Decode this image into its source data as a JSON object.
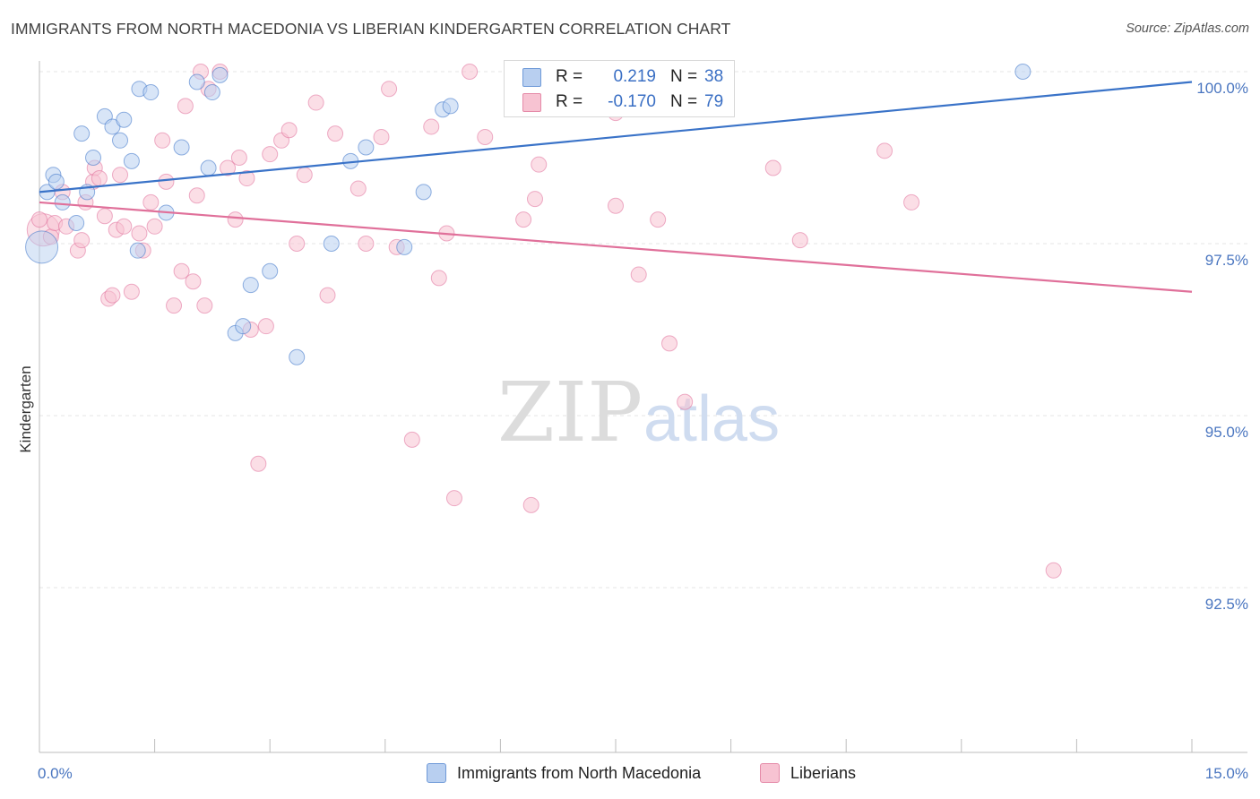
{
  "title": "IMMIGRANTS FROM NORTH MACEDONIA VS LIBERIAN KINDERGARTEN CORRELATION CHART",
  "source": "Source: ZipAtlas.com",
  "watermark": {
    "zip": "ZIP",
    "atlas": "atlas"
  },
  "legend": {
    "r_label": "R =",
    "n_label": "N =",
    "rows": [
      {
        "r": "0.219",
        "n": "38",
        "fill": "#b8cff0",
        "stroke": "#6f9ad8"
      },
      {
        "r": "-0.170",
        "n": "79",
        "fill": "#f7c3d2",
        "stroke": "#e58aa8"
      }
    ]
  },
  "bottom_legend": [
    {
      "label": "Immigrants from North Macedonia",
      "fill": "#b8cff0",
      "stroke": "#6f9ad8"
    },
    {
      "label": "Liberians",
      "fill": "#f7c3d2",
      "stroke": "#e58aa8"
    }
  ],
  "chart_data": {
    "type": "scatter",
    "title": "IMMIGRANTS FROM NORTH MACEDONIA VS LIBERIAN KINDERGARTEN CORRELATION CHART",
    "xlabel": "",
    "ylabel": "Kindergarten",
    "xlim": [
      0,
      15
    ],
    "ylim": [
      90.0,
      100.25
    ],
    "x_tick_labels": [
      {
        "value": 0,
        "label": "0.0%"
      },
      {
        "value": 15,
        "label": "15.0%"
      }
    ],
    "y_tick_labels": [
      {
        "value": 100.0,
        "label": "100.0%"
      },
      {
        "value": 97.5,
        "label": "97.5%"
      },
      {
        "value": 95.0,
        "label": "95.0%"
      },
      {
        "value": 92.5,
        "label": "92.5%"
      }
    ],
    "series": [
      {
        "name": "Immigrants from North Macedonia",
        "color": "#3a73c8",
        "fill": "#b8cff0",
        "r": 0.219,
        "n": 38,
        "trendline": [
          [
            0,
            98.25
          ],
          [
            15,
            99.85
          ]
        ],
        "points": [
          [
            0.03,
            97.45,
            "big"
          ],
          [
            0.1,
            98.25
          ],
          [
            0.18,
            98.5
          ],
          [
            0.22,
            98.4
          ],
          [
            0.3,
            98.1
          ],
          [
            0.48,
            97.8
          ],
          [
            0.55,
            99.1
          ],
          [
            0.62,
            98.25
          ],
          [
            0.7,
            98.75
          ],
          [
            0.85,
            99.35
          ],
          [
            0.95,
            99.2
          ],
          [
            1.05,
            99.0
          ],
          [
            1.1,
            99.3
          ],
          [
            1.2,
            98.7
          ],
          [
            1.28,
            97.4
          ],
          [
            1.3,
            99.75
          ],
          [
            1.45,
            99.7
          ],
          [
            1.65,
            97.95
          ],
          [
            1.85,
            98.9
          ],
          [
            2.05,
            99.85
          ],
          [
            2.2,
            98.6
          ],
          [
            2.25,
            99.7
          ],
          [
            2.35,
            99.95
          ],
          [
            2.55,
            96.2
          ],
          [
            2.65,
            96.3
          ],
          [
            2.75,
            96.9
          ],
          [
            3.0,
            97.1
          ],
          [
            3.35,
            95.85
          ],
          [
            3.8,
            97.5
          ],
          [
            4.05,
            98.7
          ],
          [
            4.25,
            98.9
          ],
          [
            4.75,
            97.45
          ],
          [
            5.0,
            98.25
          ],
          [
            5.25,
            99.45
          ],
          [
            5.35,
            99.5
          ],
          [
            6.25,
            99.9
          ],
          [
            8.5,
            100.0
          ],
          [
            12.8,
            100.0
          ]
        ]
      },
      {
        "name": "Liberians",
        "color": "#e0709a",
        "fill": "#f7c3d2",
        "r": -0.17,
        "n": 79,
        "trendline": [
          [
            0,
            98.1
          ],
          [
            15,
            96.8
          ]
        ],
        "points": [
          [
            0.05,
            97.7,
            "big"
          ],
          [
            0.15,
            97.6
          ],
          [
            0.2,
            97.8
          ],
          [
            0.3,
            98.25
          ],
          [
            0.35,
            97.75
          ],
          [
            0.5,
            97.4
          ],
          [
            0.55,
            97.55
          ],
          [
            0.6,
            98.1
          ],
          [
            0.7,
            98.4
          ],
          [
            0.72,
            98.6
          ],
          [
            0.78,
            98.45
          ],
          [
            0.85,
            97.9
          ],
          [
            0.9,
            96.7
          ],
          [
            0.95,
            96.75
          ],
          [
            1.0,
            97.7
          ],
          [
            1.05,
            98.5
          ],
          [
            1.1,
            97.75
          ],
          [
            1.2,
            96.8
          ],
          [
            1.3,
            97.65
          ],
          [
            1.35,
            97.4
          ],
          [
            1.45,
            98.1
          ],
          [
            1.5,
            97.75
          ],
          [
            1.6,
            99.0
          ],
          [
            1.65,
            98.4
          ],
          [
            1.75,
            96.6
          ],
          [
            1.85,
            97.1
          ],
          [
            1.9,
            99.5
          ],
          [
            2.0,
            96.95
          ],
          [
            2.05,
            98.2
          ],
          [
            2.1,
            100.0
          ],
          [
            2.15,
            96.6
          ],
          [
            2.2,
            99.75
          ],
          [
            2.35,
            100.0
          ],
          [
            2.45,
            98.6
          ],
          [
            2.55,
            97.85
          ],
          [
            2.6,
            98.75
          ],
          [
            2.7,
            98.45
          ],
          [
            2.75,
            96.25
          ],
          [
            2.85,
            94.3
          ],
          [
            2.95,
            96.3
          ],
          [
            3.0,
            98.8
          ],
          [
            3.15,
            99.0
          ],
          [
            3.25,
            99.15
          ],
          [
            3.35,
            97.5
          ],
          [
            3.45,
            98.5
          ],
          [
            3.6,
            99.55
          ],
          [
            3.75,
            96.75
          ],
          [
            3.85,
            99.1
          ],
          [
            4.15,
            98.3
          ],
          [
            4.25,
            97.5
          ],
          [
            4.45,
            99.05
          ],
          [
            4.55,
            99.75
          ],
          [
            4.65,
            97.45
          ],
          [
            4.85,
            94.65
          ],
          [
            5.1,
            99.2
          ],
          [
            5.2,
            97.0
          ],
          [
            5.3,
            97.65
          ],
          [
            5.4,
            93.8
          ],
          [
            5.6,
            100.0
          ],
          [
            5.8,
            99.05
          ],
          [
            6.15,
            99.5
          ],
          [
            6.3,
            97.85
          ],
          [
            6.4,
            93.7
          ],
          [
            6.45,
            98.15
          ],
          [
            6.5,
            98.65
          ],
          [
            7.0,
            100.0
          ],
          [
            7.5,
            99.4
          ],
          [
            7.5,
            98.05
          ],
          [
            7.8,
            97.05
          ],
          [
            8.05,
            97.85
          ],
          [
            8.2,
            96.05
          ],
          [
            8.4,
            95.2
          ],
          [
            8.9,
            100.0
          ],
          [
            9.55,
            98.6
          ],
          [
            9.9,
            97.55
          ],
          [
            11.0,
            98.85
          ],
          [
            11.35,
            98.1
          ],
          [
            13.2,
            92.75
          ],
          [
            0.0,
            97.85
          ]
        ]
      }
    ]
  }
}
